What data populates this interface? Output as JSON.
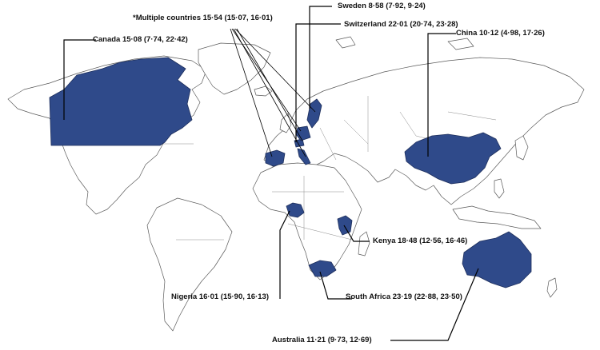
{
  "highlight_color": "#2f4a8a",
  "annotations": {
    "multiple": "*Multiple countries 15·54 (15·07, 16·01)",
    "sweden": "Sweden 8·58 (7·92, 9·24)",
    "switzerland": "Switzerland 22·01 (20·74, 23·28)",
    "canada": "Canada 15·08 (7·74, 22·42)",
    "china": "China 10·12 (4·98, 17·26)",
    "kenya": "Kenya 18·48 (12·56, 16·46)",
    "nigeria": "Nigeria 16·01 (15·90, 16·13)",
    "south_africa": "South Africa 23·19 (22·88, 23·50)",
    "australia": "Australia 11·21 (9·73, 12·69)"
  }
}
